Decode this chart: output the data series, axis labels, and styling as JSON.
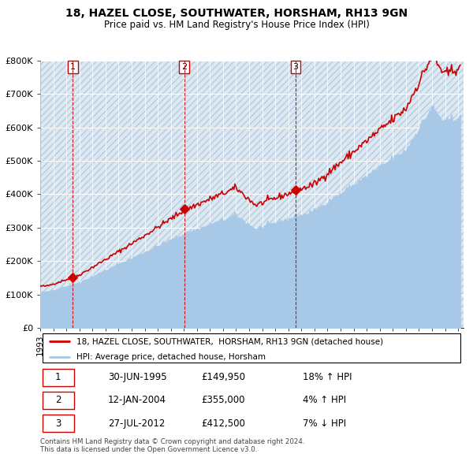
{
  "title": "18, HAZEL CLOSE, SOUTHWATER, HORSHAM, RH13 9GN",
  "subtitle": "Price paid vs. HM Land Registry's House Price Index (HPI)",
  "ylim": [
    0,
    800000
  ],
  "yticks": [
    0,
    100000,
    200000,
    300000,
    400000,
    500000,
    600000,
    700000,
    800000
  ],
  "ytick_labels": [
    "£0",
    "£100K",
    "£200K",
    "£300K",
    "£400K",
    "£500K",
    "£600K",
    "£700K",
    "£800K"
  ],
  "price_paid": [
    {
      "date": "1995-06-30",
      "price": 149950,
      "label": "1"
    },
    {
      "date": "2004-01-12",
      "price": 355000,
      "label": "2"
    },
    {
      "date": "2012-07-27",
      "price": 412500,
      "label": "3"
    }
  ],
  "legend_line1": "18, HAZEL CLOSE, SOUTHWATER,  HORSHAM, RH13 9GN (detached house)",
  "legend_line2": "HPI: Average price, detached house, Horsham",
  "table_rows": [
    [
      "1",
      "30-JUN-1995",
      "£149,950",
      "18% ↑ HPI"
    ],
    [
      "2",
      "12-JAN-2004",
      "£355,000",
      "4% ↑ HPI"
    ],
    [
      "3",
      "27-JUL-2012",
      "£412,500",
      "7% ↓ HPI"
    ]
  ],
  "footer1": "Contains HM Land Registry data © Crown copyright and database right 2024.",
  "footer2": "This data is licensed under the Open Government Licence v3.0.",
  "hpi_color": "#a8c8e8",
  "price_color": "#cc0000",
  "vline_color": "#cc0000",
  "bg_color": "#dce8f4",
  "grid_color": "#ffffff",
  "hatch_color": "#c8d4e0"
}
